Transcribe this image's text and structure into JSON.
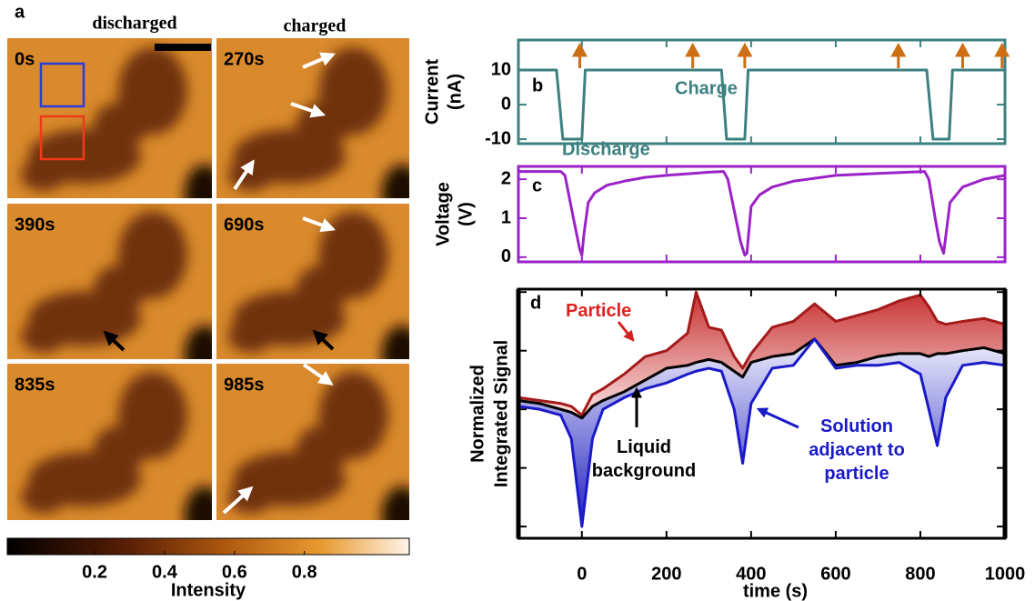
{
  "panel_a": {
    "label": "a",
    "columns": [
      "discharged",
      "charged"
    ],
    "frames": [
      "0s",
      "270s",
      "390s",
      "690s",
      "835s",
      "985s"
    ],
    "colorbar": {
      "lim": [
        -0.05,
        1.1
      ],
      "ticks": [
        0.2,
        0.4,
        0.6,
        0.8
      ],
      "label": "Intensity"
    }
  },
  "chart_data": [
    {
      "type": "line",
      "label": "b",
      "ylabel": [
        "Current",
        "(nA)"
      ],
      "axis_color": "#3d8080",
      "show_xtick_labels": false,
      "show_ytick_labels": true,
      "x": [
        -150,
        -60,
        -45,
        0,
        8,
        330,
        342,
        385,
        393,
        815,
        830,
        868,
        876,
        1000
      ],
      "series": [
        {
          "color": "#3d8080",
          "values": [
            10,
            10,
            -10,
            -10,
            10,
            10,
            -10,
            -10,
            10,
            10,
            -10,
            -10,
            10,
            10
          ]
        }
      ],
      "xlim": [
        -150,
        1000
      ],
      "xticks": [
        0,
        200,
        400,
        600,
        800,
        1000
      ],
      "ylim": [
        -11.3,
        18.7
      ],
      "yticks": [
        -10,
        0,
        10
      ],
      "annotations": [
        "Charge",
        "Discharge"
      ],
      "markers": {
        "color": "#cc6e14",
        "x": [
          -5,
          262,
          385,
          748,
          900,
          993
        ]
      }
    },
    {
      "type": "line",
      "label": "c",
      "ylabel": [
        "Voltage",
        "(V)"
      ],
      "axis_color": "#9b22c8",
      "show_xtick_labels": false,
      "show_ytick_labels": true,
      "x": [
        -150,
        -50,
        -40,
        -20,
        -5,
        0,
        5,
        15,
        30,
        60,
        100,
        150,
        200,
        300,
        335,
        345,
        360,
        375,
        385,
        390,
        400,
        420,
        450,
        500,
        600,
        700,
        810,
        820,
        835,
        845,
        855,
        870,
        900,
        950,
        1000
      ],
      "series": [
        {
          "color": "#9b22c8",
          "values": [
            2.2,
            2.2,
            2.1,
            1.0,
            0.2,
            0.05,
            0.6,
            1.4,
            1.65,
            1.85,
            1.95,
            2.05,
            2.1,
            2.18,
            2.2,
            2.0,
            1.2,
            0.4,
            0.05,
            0.1,
            1.3,
            1.6,
            1.8,
            1.95,
            2.1,
            2.15,
            2.2,
            2.0,
            1.0,
            0.4,
            0.1,
            1.4,
            1.8,
            2.0,
            2.1
          ]
        }
      ],
      "xlim": [
        -150,
        1000
      ],
      "xticks": [
        0,
        200,
        400,
        600,
        800,
        1000
      ],
      "ylim": [
        -0.12,
        2.33
      ],
      "yticks": [
        0,
        1,
        2
      ]
    },
    {
      "type": "line",
      "label": "d",
      "ylabel": [
        "Normalized",
        "Integrated Signal"
      ],
      "xlabel": "time (s)",
      "axis_color": "#000000",
      "show_xtick_labels": true,
      "show_ytick_labels": false,
      "shading": true,
      "x": [
        -150,
        -100,
        -50,
        -25,
        0,
        25,
        50,
        100,
        150,
        200,
        250,
        270,
        300,
        330,
        360,
        380,
        400,
        450,
        500,
        550,
        600,
        650,
        700,
        750,
        800,
        820,
        840,
        860,
        900,
        950,
        1000
      ],
      "series": [
        {
          "name": "Particle",
          "color": "#a51a1a",
          "values": [
            2.2,
            2.15,
            2.1,
            2.05,
            1.9,
            2.25,
            2.35,
            2.6,
            2.9,
            3.0,
            3.3,
            4.0,
            3.4,
            3.35,
            2.9,
            2.7,
            2.95,
            3.4,
            3.5,
            3.8,
            3.5,
            3.6,
            3.7,
            3.85,
            3.95,
            3.75,
            3.5,
            3.45,
            3.5,
            3.55,
            3.45
          ]
        },
        {
          "name": "Liquid background",
          "color": "#000000",
          "values": [
            2.15,
            2.1,
            2.0,
            1.95,
            1.85,
            2.05,
            2.15,
            2.3,
            2.5,
            2.7,
            2.75,
            2.8,
            2.85,
            2.8,
            2.65,
            2.55,
            2.8,
            2.9,
            2.95,
            3.2,
            2.75,
            2.8,
            2.9,
            2.95,
            2.95,
            2.9,
            2.95,
            2.95,
            3.0,
            3.05,
            2.95
          ]
        },
        {
          "name": "Solution adjacent to particle",
          "color": "#1a1ac8",
          "values": [
            2.05,
            2.0,
            1.9,
            1.5,
            0.0,
            1.5,
            2.0,
            2.2,
            2.35,
            2.45,
            2.6,
            2.65,
            2.7,
            2.65,
            2.0,
            1.08,
            2.1,
            2.7,
            2.75,
            3.2,
            2.7,
            2.75,
            2.75,
            2.8,
            2.6,
            2.0,
            1.38,
            2.2,
            2.75,
            2.8,
            2.75
          ]
        }
      ],
      "xlim": [
        -150,
        1000
      ],
      "xticks": [
        0,
        200,
        400,
        600,
        800,
        1000
      ],
      "ylim": [
        -0.2,
        4.05
      ],
      "yticks": [
        0,
        1,
        2,
        3,
        4
      ]
    }
  ]
}
